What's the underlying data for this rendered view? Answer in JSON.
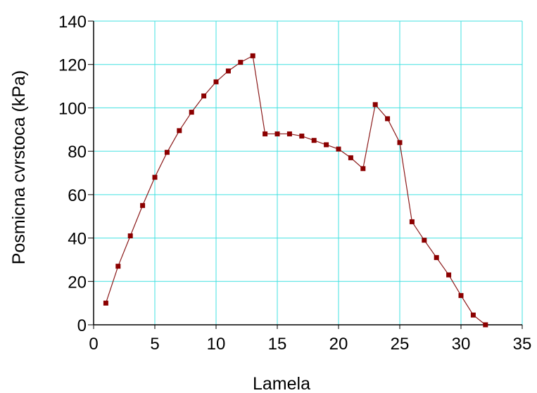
{
  "chart_data": {
    "type": "line",
    "title": "",
    "xlabel": "Lamela",
    "ylabel": "Posmicna cvrstoca (kPa)",
    "xlim": [
      0,
      35
    ],
    "ylim": [
      0,
      140
    ],
    "xticks": [
      0,
      5,
      10,
      15,
      20,
      25,
      30,
      35
    ],
    "yticks": [
      0,
      20,
      40,
      60,
      80,
      100,
      120,
      140
    ],
    "grid": true,
    "legend": "none",
    "colors": {
      "line": "#8b1a1a",
      "marker": "#8b0000",
      "grid": "#40e0e0",
      "axis": "#000000"
    },
    "series": [
      {
        "x": [
          1,
          2,
          3,
          4,
          5,
          6,
          7,
          8,
          9,
          10,
          11,
          12,
          13,
          14,
          15,
          16,
          17,
          18,
          19,
          20,
          21,
          22,
          23,
          24,
          25,
          26,
          27,
          28,
          29,
          30,
          31,
          32
        ],
        "y": [
          10,
          27,
          41,
          55,
          68,
          79.5,
          89.5,
          98,
          105.5,
          112,
          117,
          121,
          124,
          88,
          88,
          88,
          87,
          85,
          83,
          81,
          77,
          72,
          101.5,
          95,
          84,
          47.5,
          39,
          31,
          23,
          13.5,
          4.5,
          0
        ]
      }
    ]
  }
}
